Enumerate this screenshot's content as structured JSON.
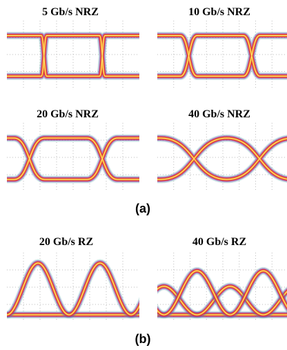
{
  "figures": [
    {
      "label": "(a)",
      "panels": [
        {
          "title": "5 Gb/s NRZ"
        },
        {
          "title": "10 Gb/s NRZ"
        },
        {
          "title": "20 Gb/s NRZ"
        },
        {
          "title": "40 Gb/s NRZ"
        }
      ]
    },
    {
      "label": "(b)",
      "panels": [
        {
          "title": "20 Gb/s RZ"
        },
        {
          "title": "40 Gb/s RZ"
        }
      ]
    }
  ]
}
